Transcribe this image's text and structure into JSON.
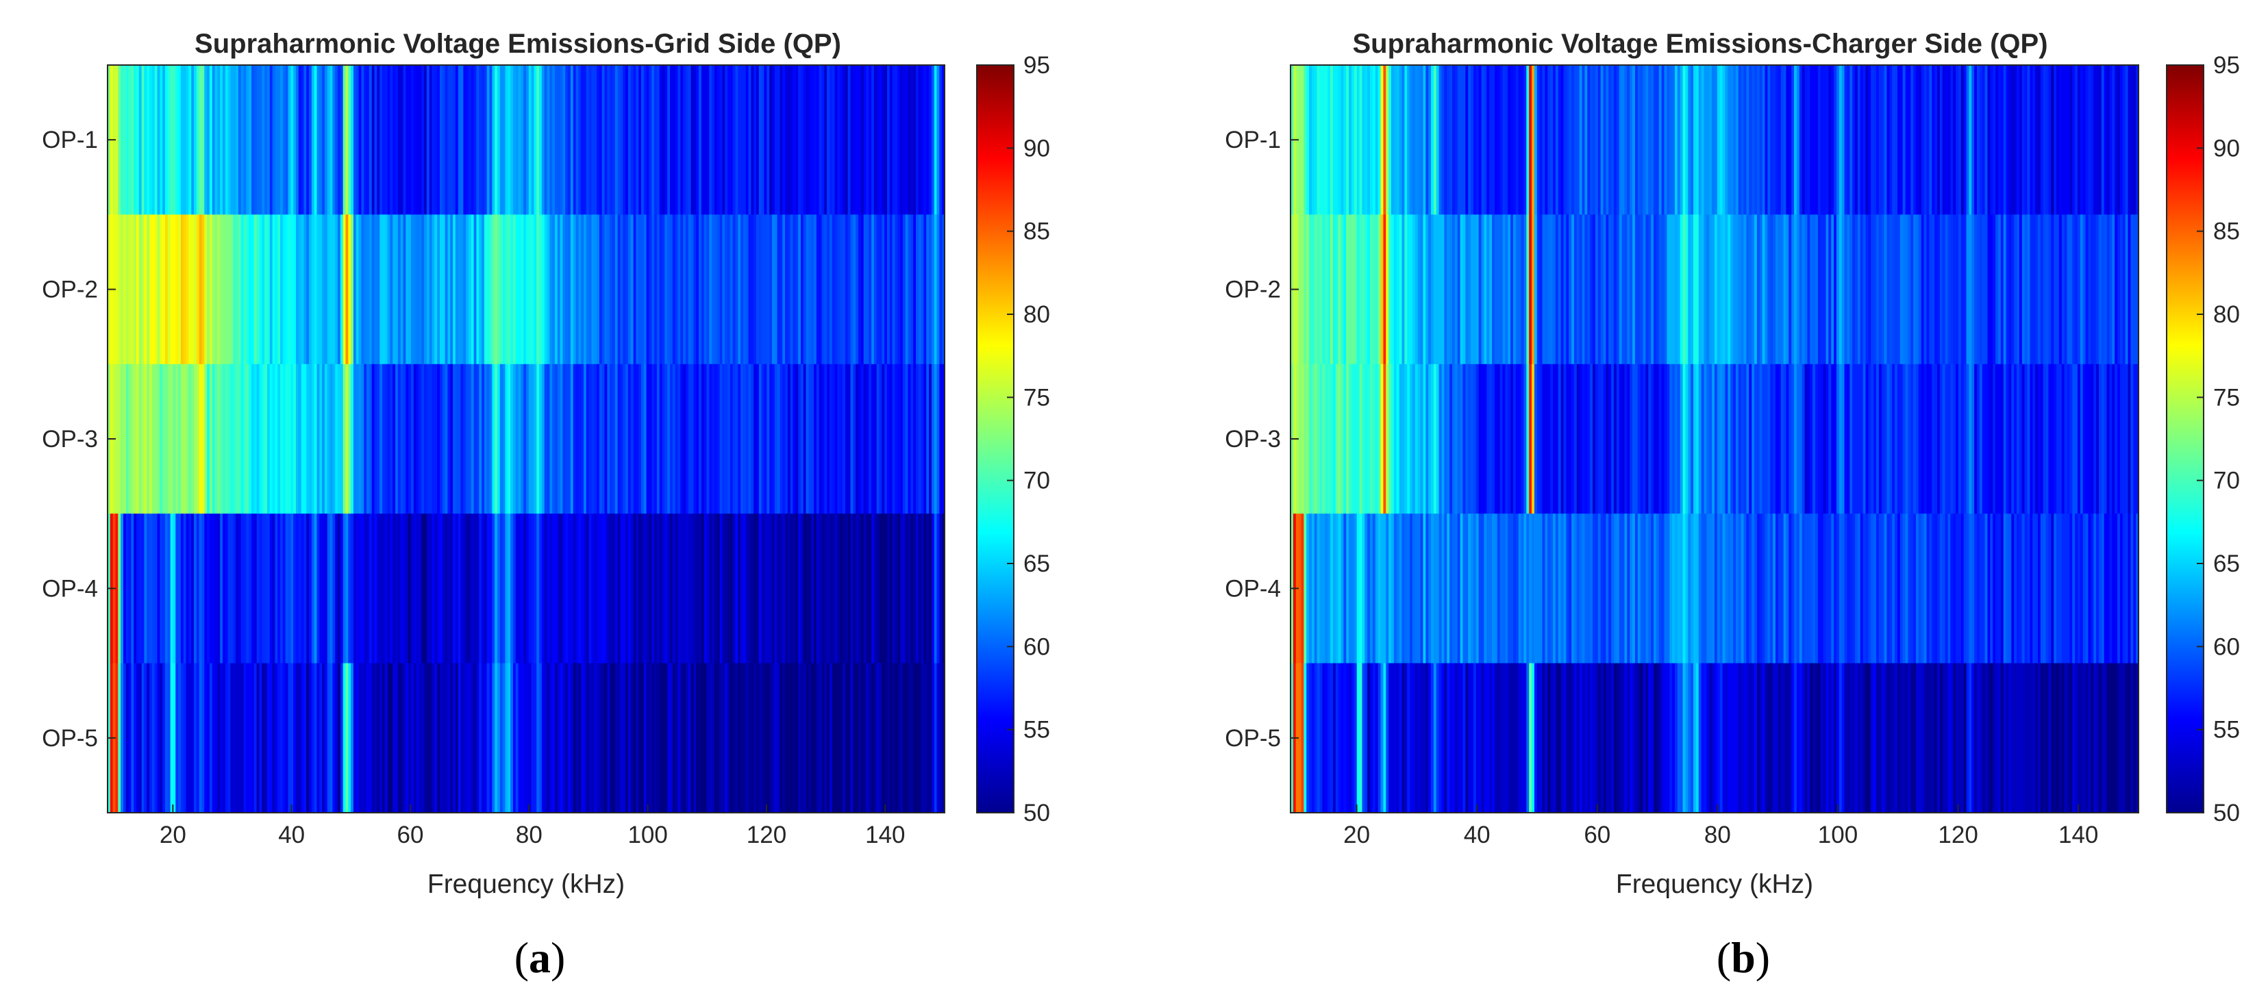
{
  "chart_data": [
    {
      "type": "heatmap",
      "panel_id": "a",
      "title": "Supraharmonic Voltage Emissions-Grid Side (QP)",
      "xlabel": "Frequency (kHz)",
      "ylabel": "",
      "xlim": [
        9,
        150
      ],
      "x_ticks": [
        20,
        40,
        60,
        80,
        100,
        120,
        140
      ],
      "rows": [
        "OP-1",
        "OP-2",
        "OP-3",
        "OP-4",
        "OP-5"
      ],
      "color_range": [
        50,
        95
      ],
      "colorbar_ticks": [
        50,
        55,
        60,
        65,
        70,
        75,
        80,
        85,
        90,
        95
      ],
      "caption_open": "(",
      "caption_letter": "a",
      "caption_close": ")",
      "base_levels": [
        [
          [
            9,
            68
          ],
          [
            14,
            67
          ],
          [
            20,
            66
          ],
          [
            30,
            64
          ],
          [
            36,
            60
          ],
          [
            50,
            57
          ],
          [
            60,
            56
          ],
          [
            72,
            58
          ],
          [
            74,
            62
          ],
          [
            80,
            64
          ],
          [
            88,
            58
          ],
          [
            95,
            57
          ],
          [
            120,
            56
          ],
          [
            150,
            55
          ]
        ],
        [
          [
            9,
            74
          ],
          [
            13,
            76
          ],
          [
            18,
            77
          ],
          [
            22,
            78
          ],
          [
            26,
            74
          ],
          [
            32,
            69
          ],
          [
            40,
            65
          ],
          [
            50,
            62
          ],
          [
            70,
            63
          ],
          [
            74,
            68
          ],
          [
            78,
            67
          ],
          [
            85,
            63
          ],
          [
            95,
            59
          ],
          [
            150,
            58
          ]
        ],
        [
          [
            9,
            73
          ],
          [
            15,
            73
          ],
          [
            25,
            71
          ],
          [
            35,
            67
          ],
          [
            48,
            64
          ],
          [
            52,
            59
          ],
          [
            60,
            57
          ],
          [
            70,
            58
          ],
          [
            74,
            62
          ],
          [
            80,
            62
          ],
          [
            90,
            58
          ],
          [
            150,
            56
          ]
        ],
        [
          [
            9,
            58
          ],
          [
            20,
            57
          ],
          [
            35,
            56
          ],
          [
            45,
            55
          ],
          [
            60,
            53
          ],
          [
            72,
            54
          ],
          [
            76,
            58
          ],
          [
            80,
            55
          ],
          [
            100,
            53
          ],
          [
            130,
            52
          ],
          [
            150,
            51
          ]
        ],
        [
          [
            9,
            57
          ],
          [
            20,
            56
          ],
          [
            30,
            55
          ],
          [
            45,
            54
          ],
          [
            55,
            52
          ],
          [
            70,
            53
          ],
          [
            75,
            59
          ],
          [
            79,
            56
          ],
          [
            90,
            52
          ],
          [
            120,
            51
          ],
          [
            150,
            50
          ]
        ]
      ],
      "peaks": [
        {
          "f": 9.8,
          "levels": [
            78,
            78,
            77,
            92,
            91
          ]
        },
        {
          "f": 10.5,
          "levels": [
            76,
            76,
            75,
            89,
            88
          ]
        },
        {
          "f": 20,
          "levels": [
            70,
            68,
            66,
            68,
            69
          ]
        },
        {
          "f": 24.8,
          "levels": [
            72,
            82,
            79,
            60,
            60
          ]
        },
        {
          "f": 49.2,
          "levels": [
            76,
            84,
            76,
            62,
            72
          ]
        },
        {
          "f": 49.8,
          "levels": [
            70,
            78,
            72,
            58,
            66
          ]
        },
        {
          "f": 40,
          "levels": [
            66,
            67,
            66,
            60,
            58
          ]
        },
        {
          "f": 44,
          "levels": [
            67,
            66,
            64,
            62,
            58
          ]
        },
        {
          "f": 46.5,
          "levels": [
            66,
            65,
            63,
            61,
            60
          ]
        },
        {
          "f": 74.5,
          "levels": [
            68,
            72,
            70,
            63,
            64
          ]
        },
        {
          "f": 76.5,
          "levels": [
            66,
            70,
            68,
            64,
            65
          ]
        },
        {
          "f": 81.5,
          "levels": [
            70,
            70,
            68,
            60,
            60
          ]
        },
        {
          "f": 148.5,
          "levels": [
            66,
            64,
            62,
            60,
            58
          ]
        }
      ]
    },
    {
      "type": "heatmap",
      "panel_id": "b",
      "title": "Supraharmonic Voltage Emissions-Charger Side (QP)",
      "xlabel": "Frequency (kHz)",
      "ylabel": "",
      "xlim": [
        9,
        150
      ],
      "x_ticks": [
        20,
        40,
        60,
        80,
        100,
        120,
        140
      ],
      "rows": [
        "OP-1",
        "OP-2",
        "OP-3",
        "OP-4",
        "OP-5"
      ],
      "color_range": [
        50,
        95
      ],
      "colorbar_ticks": [
        50,
        55,
        60,
        65,
        70,
        75,
        80,
        85,
        90,
        95
      ],
      "caption_open": "(",
      "caption_letter": "b",
      "caption_close": ")",
      "base_levels": [
        [
          [
            9,
            68
          ],
          [
            14,
            67
          ],
          [
            20,
            66
          ],
          [
            30,
            63
          ],
          [
            35,
            58
          ],
          [
            45,
            56
          ],
          [
            50,
            57
          ],
          [
            60,
            60
          ],
          [
            70,
            59
          ],
          [
            74,
            62
          ],
          [
            80,
            62
          ],
          [
            90,
            57
          ],
          [
            150,
            55
          ]
        ],
        [
          [
            9,
            70
          ],
          [
            15,
            70
          ],
          [
            25,
            68
          ],
          [
            33,
            62
          ],
          [
            45,
            61
          ],
          [
            50,
            59
          ],
          [
            70,
            60
          ],
          [
            74,
            65
          ],
          [
            80,
            63
          ],
          [
            90,
            61
          ],
          [
            100,
            59
          ],
          [
            150,
            58
          ]
        ],
        [
          [
            9,
            71
          ],
          [
            15,
            70
          ],
          [
            25,
            68
          ],
          [
            33,
            62
          ],
          [
            40,
            57
          ],
          [
            50,
            56
          ],
          [
            70,
            56
          ],
          [
            74,
            60
          ],
          [
            80,
            60
          ],
          [
            95,
            57
          ],
          [
            150,
            56
          ]
        ],
        [
          [
            9,
            62
          ],
          [
            20,
            62
          ],
          [
            35,
            61
          ],
          [
            50,
            60
          ],
          [
            70,
            60
          ],
          [
            74,
            63
          ],
          [
            80,
            60
          ],
          [
            100,
            58
          ],
          [
            150,
            57
          ]
        ],
        [
          [
            9,
            57
          ],
          [
            20,
            55
          ],
          [
            30,
            54
          ],
          [
            48,
            54
          ],
          [
            52,
            52
          ],
          [
            70,
            53
          ],
          [
            75,
            59
          ],
          [
            78,
            55
          ],
          [
            90,
            53
          ],
          [
            120,
            52
          ],
          [
            150,
            51
          ]
        ]
      ],
      "peaks": [
        {
          "f": 9.8,
          "levels": [
            76,
            76,
            76,
            92,
            91
          ]
        },
        {
          "f": 10.8,
          "levels": [
            74,
            74,
            74,
            90,
            90
          ]
        },
        {
          "f": 20.5,
          "levels": [
            66,
            66,
            66,
            68,
            70
          ]
        },
        {
          "f": 24.6,
          "levels": [
            86,
            88,
            86,
            62,
            66
          ]
        },
        {
          "f": 49,
          "levels": [
            92,
            92,
            90,
            62,
            72
          ]
        },
        {
          "f": 33,
          "levels": [
            70,
            64,
            68,
            60,
            62
          ]
        },
        {
          "f": 74.5,
          "levels": [
            68,
            70,
            68,
            66,
            64
          ]
        },
        {
          "f": 76.5,
          "levels": [
            66,
            68,
            66,
            64,
            66
          ]
        },
        {
          "f": 80.5,
          "levels": [
            66,
            64,
            62,
            60,
            58
          ]
        },
        {
          "f": 93,
          "levels": [
            64,
            63,
            62,
            60,
            58
          ]
        },
        {
          "f": 100.5,
          "levels": [
            64,
            64,
            62,
            60,
            58
          ]
        },
        {
          "f": 122,
          "levels": [
            64,
            62,
            62,
            60,
            58
          ]
        }
      ]
    }
  ]
}
